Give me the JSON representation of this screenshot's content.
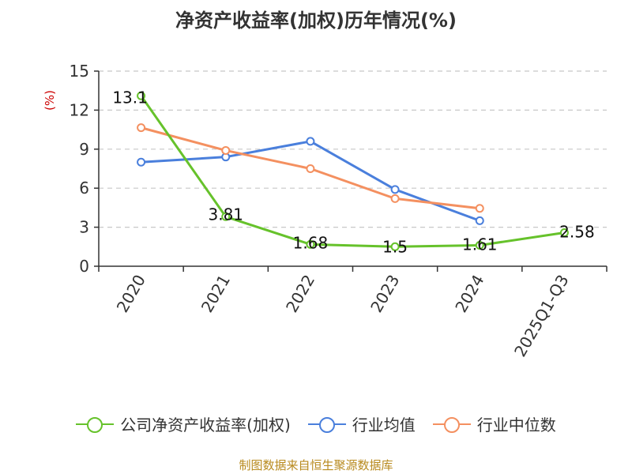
{
  "chart_data": {
    "type": "line",
    "title": "净资产收益率(加权)历年情况(%)",
    "ylabel": "(%)",
    "xlabel": "",
    "ylim": [
      0,
      15
    ],
    "yticks": [
      0,
      3,
      6,
      9,
      12,
      15
    ],
    "grid": true,
    "legend_position": "bottom",
    "categories": [
      "2020",
      "2021",
      "2022",
      "2023",
      "2024",
      "2025Q1-Q3"
    ],
    "series": [
      {
        "name": "公司净资产收益率(加权)",
        "color": "#66c22b",
        "values": [
          13.1,
          3.81,
          1.68,
          1.5,
          1.61,
          2.58
        ],
        "data_labels": [
          "13.1",
          "3.81",
          "1.68",
          "1.5",
          "1.61",
          "2.58"
        ]
      },
      {
        "name": "行业均值",
        "color": "#4a7fdc",
        "values": [
          8.0,
          8.4,
          9.6,
          5.9,
          3.5,
          null
        ]
      },
      {
        "name": "行业中位数",
        "color": "#f49060",
        "values": [
          10.65,
          8.9,
          7.5,
          5.2,
          4.45,
          null
        ]
      }
    ]
  },
  "footer": {
    "source": "制图数据来自恒生聚源数据库"
  },
  "colors": {
    "grid": "#c8c8c8",
    "axis": "#333333",
    "ylabel": "#cc0000",
    "footer": "#b88a1e"
  }
}
